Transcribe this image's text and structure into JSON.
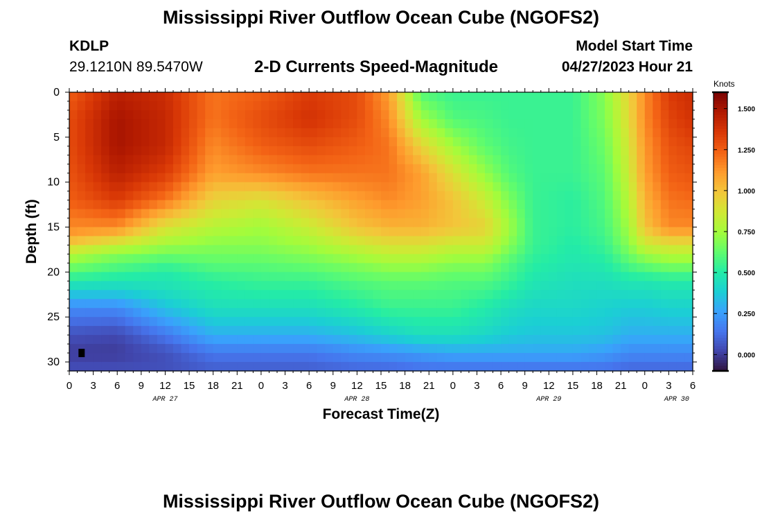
{
  "header": {
    "title": "Mississippi River Outflow Ocean Cube (NGOFS2)",
    "station_code": "KDLP",
    "station_coords": "29.1210N  89.5470W",
    "subtitle": "2-D Currents Speed-Magnitude",
    "model_start_label": "Model Start Time",
    "model_start_value": "04/27/2023 Hour 21"
  },
  "footer": {
    "title": "Mississippi River Outflow Ocean Cube (NGOFS2)"
  },
  "chart_data": {
    "type": "heatmap",
    "title": "2-D Currents Speed-Magnitude",
    "xlabel": "Forecast Time(Z)",
    "ylabel": "Depth (ft)",
    "xlim": [
      0,
      78
    ],
    "ylim": [
      31,
      0
    ],
    "x_ticks": [
      {
        "x": 0,
        "label": "0"
      },
      {
        "x": 3,
        "label": "3"
      },
      {
        "x": 6,
        "label": "6"
      },
      {
        "x": 9,
        "label": "9"
      },
      {
        "x": 12,
        "label": "12"
      },
      {
        "x": 15,
        "label": "15"
      },
      {
        "x": 18,
        "label": "18"
      },
      {
        "x": 21,
        "label": "21"
      },
      {
        "x": 24,
        "label": "0"
      },
      {
        "x": 27,
        "label": "3"
      },
      {
        "x": 30,
        "label": "6"
      },
      {
        "x": 33,
        "label": "9"
      },
      {
        "x": 36,
        "label": "12"
      },
      {
        "x": 39,
        "label": "15"
      },
      {
        "x": 42,
        "label": "18"
      },
      {
        "x": 45,
        "label": "21"
      },
      {
        "x": 48,
        "label": "0"
      },
      {
        "x": 51,
        "label": "3"
      },
      {
        "x": 54,
        "label": "6"
      },
      {
        "x": 57,
        "label": "9"
      },
      {
        "x": 60,
        "label": "12"
      },
      {
        "x": 63,
        "label": "15"
      },
      {
        "x": 66,
        "label": "18"
      },
      {
        "x": 69,
        "label": "21"
      },
      {
        "x": 72,
        "label": "0"
      },
      {
        "x": 75,
        "label": "3"
      },
      {
        "x": 78,
        "label": "6"
      }
    ],
    "date_labels": [
      {
        "x": 12,
        "label": "APR 27"
      },
      {
        "x": 36,
        "label": "APR 28"
      },
      {
        "x": 60,
        "label": "APR 29"
      },
      {
        "x": 76,
        "label": "APR 30"
      }
    ],
    "y_ticks": [
      0,
      5,
      10,
      15,
      20,
      25,
      30
    ],
    "colorbar": {
      "label": "Knots",
      "range": [
        -0.1,
        1.6
      ],
      "ticks": [
        {
          "v": 1.5,
          "label": "1.500"
        },
        {
          "v": 1.25,
          "label": "1.250"
        },
        {
          "v": 1.0,
          "label": "1.000"
        },
        {
          "v": 0.75,
          "label": "0.750"
        },
        {
          "v": 0.5,
          "label": "0.500"
        },
        {
          "v": 0.25,
          "label": "0.250"
        },
        {
          "v": 0.0,
          "label": "0.000"
        }
      ],
      "colors": [
        "#30123b",
        "#4145ab",
        "#4675ed",
        "#39a2fc",
        "#1bcfd4",
        "#24eca6",
        "#61fc6c",
        "#a4fc3b",
        "#d1e834",
        "#f3c63a",
        "#fe9b2d",
        "#f36315",
        "#d93806",
        "#b11901",
        "#7a0403"
      ]
    },
    "profiles": [
      {
        "t": 0,
        "depth": [
          0,
          3,
          6,
          9,
          12,
          15,
          16,
          17,
          18,
          20,
          22,
          24,
          27,
          29,
          31
        ],
        "speed": [
          1.25,
          1.3,
          1.3,
          1.28,
          1.25,
          1.15,
          1.1,
          0.95,
          0.8,
          0.6,
          0.4,
          0.2,
          0.05,
          0.0,
          0.05
        ]
      },
      {
        "t": 6,
        "depth": [
          0,
          3,
          6,
          9,
          12,
          15,
          16,
          17,
          18,
          20,
          22,
          24,
          27,
          29,
          31
        ],
        "speed": [
          1.45,
          1.5,
          1.5,
          1.45,
          1.35,
          1.15,
          1.0,
          0.85,
          0.7,
          0.55,
          0.4,
          0.2,
          0.03,
          0.0,
          0.05
        ]
      },
      {
        "t": 12,
        "depth": [
          0,
          3,
          6,
          9,
          12,
          15,
          17,
          18,
          20,
          22,
          24,
          27,
          29,
          31
        ],
        "speed": [
          1.4,
          1.42,
          1.42,
          1.35,
          1.2,
          0.9,
          0.75,
          0.65,
          0.5,
          0.45,
          0.35,
          0.15,
          0.05,
          0.05
        ]
      },
      {
        "t": 18,
        "depth": [
          0,
          3,
          6,
          9,
          12,
          15,
          17,
          19,
          21,
          24,
          27,
          29,
          31
        ],
        "speed": [
          1.2,
          1.2,
          1.15,
          1.1,
          0.95,
          0.8,
          0.7,
          0.62,
          0.52,
          0.45,
          0.3,
          0.15,
          0.08
        ]
      },
      {
        "t": 24,
        "depth": [
          0,
          3,
          6,
          9,
          12,
          15,
          17,
          19,
          21,
          24,
          27,
          29,
          31
        ],
        "speed": [
          1.25,
          1.3,
          1.25,
          1.15,
          0.9,
          0.75,
          0.7,
          0.62,
          0.55,
          0.45,
          0.3,
          0.15,
          0.08
        ]
      },
      {
        "t": 30,
        "depth": [
          0,
          3,
          6,
          9,
          12,
          15,
          17,
          19,
          21,
          24,
          27,
          29,
          31
        ],
        "speed": [
          1.35,
          1.38,
          1.3,
          1.2,
          1.0,
          0.85,
          0.75,
          0.65,
          0.55,
          0.45,
          0.3,
          0.15,
          0.08
        ]
      },
      {
        "t": 36,
        "depth": [
          0,
          3,
          6,
          9,
          12,
          15,
          17,
          19,
          21,
          24,
          27,
          29,
          31
        ],
        "speed": [
          1.3,
          1.3,
          1.25,
          1.2,
          1.1,
          1.0,
          0.85,
          0.7,
          0.6,
          0.5,
          0.35,
          0.2,
          0.1
        ]
      },
      {
        "t": 40,
        "depth": [
          0,
          3,
          6,
          9,
          12,
          15,
          17,
          19,
          21,
          24,
          27,
          29,
          31
        ],
        "speed": [
          1.1,
          1.15,
          1.2,
          1.2,
          1.15,
          1.05,
          0.9,
          0.75,
          0.62,
          0.55,
          0.4,
          0.22,
          0.1
        ]
      },
      {
        "t": 44,
        "depth": [
          0,
          3,
          6,
          9,
          12,
          15,
          17,
          19,
          21,
          24,
          27,
          29,
          31
        ],
        "speed": [
          0.6,
          0.75,
          0.95,
          1.1,
          1.1,
          1.05,
          0.9,
          0.75,
          0.62,
          0.55,
          0.45,
          0.25,
          0.12
        ]
      },
      {
        "t": 48,
        "depth": [
          0,
          3,
          6,
          9,
          12,
          15,
          17,
          19,
          21,
          24,
          27,
          29,
          31
        ],
        "speed": [
          0.55,
          0.6,
          0.75,
          0.9,
          1.0,
          1.0,
          0.85,
          0.7,
          0.6,
          0.55,
          0.45,
          0.28,
          0.12
        ]
      },
      {
        "t": 52,
        "depth": [
          0,
          3,
          6,
          9,
          12,
          15,
          17,
          19,
          21,
          24,
          27,
          29,
          31
        ],
        "speed": [
          0.55,
          0.58,
          0.62,
          0.72,
          0.85,
          0.95,
          0.85,
          0.7,
          0.6,
          0.5,
          0.42,
          0.28,
          0.12
        ]
      },
      {
        "t": 55,
        "depth": [
          0,
          3,
          6,
          9,
          12,
          15,
          17,
          19,
          21,
          24,
          27,
          29,
          31
        ],
        "speed": [
          0.55,
          0.55,
          0.57,
          0.6,
          0.68,
          0.75,
          0.7,
          0.6,
          0.55,
          0.45,
          0.38,
          0.28,
          0.12
        ]
      },
      {
        "t": 58,
        "depth": [
          0,
          3,
          6,
          9,
          12,
          15,
          17,
          19,
          21,
          24,
          27,
          29,
          31
        ],
        "speed": [
          0.55,
          0.55,
          0.55,
          0.55,
          0.55,
          0.55,
          0.55,
          0.52,
          0.48,
          0.42,
          0.36,
          0.28,
          0.12
        ]
      },
      {
        "t": 63,
        "depth": [
          0,
          3,
          6,
          9,
          12,
          15,
          17,
          19,
          21,
          24,
          27,
          29,
          31
        ],
        "speed": [
          0.55,
          0.55,
          0.55,
          0.55,
          0.52,
          0.52,
          0.5,
          0.48,
          0.45,
          0.42,
          0.36,
          0.28,
          0.12
        ]
      },
      {
        "t": 67,
        "depth": [
          0,
          3,
          6,
          9,
          12,
          15,
          17,
          19,
          21,
          24,
          27,
          29,
          31
        ],
        "speed": [
          0.7,
          0.68,
          0.65,
          0.62,
          0.6,
          0.58,
          0.55,
          0.5,
          0.45,
          0.4,
          0.35,
          0.25,
          0.12
        ]
      },
      {
        "t": 70,
        "depth": [
          0,
          3,
          6,
          9,
          12,
          15,
          17,
          19,
          21,
          24,
          27,
          29,
          31
        ],
        "speed": [
          0.95,
          0.92,
          0.88,
          0.85,
          0.8,
          0.75,
          0.7,
          0.6,
          0.48,
          0.38,
          0.3,
          0.2,
          0.1
        ]
      },
      {
        "t": 72,
        "depth": [
          0,
          3,
          6,
          9,
          12,
          15,
          17,
          19,
          21,
          24,
          27,
          29,
          31
        ],
        "speed": [
          1.15,
          1.15,
          1.12,
          1.1,
          1.05,
          1.0,
          0.85,
          0.65,
          0.48,
          0.38,
          0.3,
          0.2,
          0.1
        ]
      },
      {
        "t": 75,
        "depth": [
          0,
          3,
          6,
          9,
          12,
          15,
          17,
          19,
          21,
          24,
          27,
          29,
          31
        ],
        "speed": [
          1.35,
          1.32,
          1.28,
          1.25,
          1.2,
          1.15,
          0.9,
          0.7,
          0.5,
          0.4,
          0.3,
          0.2,
          0.1
        ]
      },
      {
        "t": 78,
        "depth": [
          0,
          3,
          6,
          9,
          12,
          15,
          17,
          19,
          21,
          24,
          27,
          29,
          31
        ],
        "speed": [
          1.4,
          1.38,
          1.32,
          1.28,
          1.22,
          1.15,
          0.9,
          0.7,
          0.5,
          0.4,
          0.3,
          0.2,
          0.1
        ]
      }
    ],
    "marker": {
      "x": 1.5,
      "depth": 29.0
    }
  }
}
